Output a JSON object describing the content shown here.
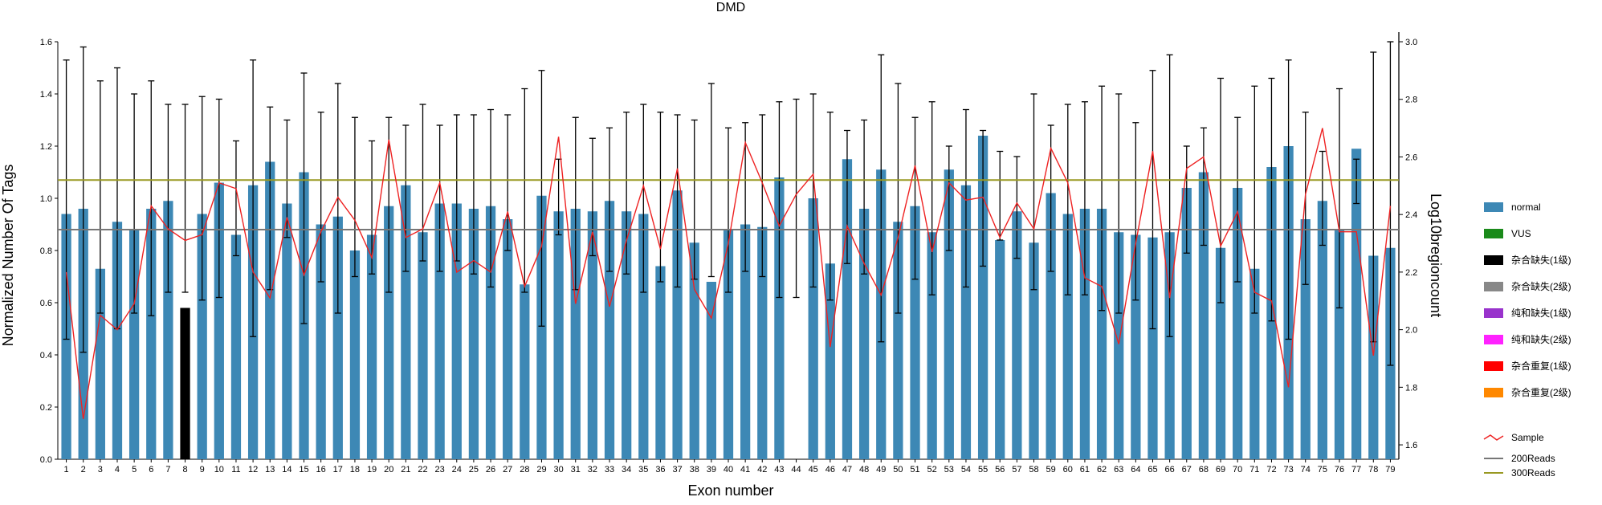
{
  "chart_data": {
    "type": "bar",
    "title": "DMD",
    "xlabel": "Exon number",
    "ylabel": "Normalized Number Of Tags",
    "y2label": "Log10bregioncount",
    "ylim": [
      0,
      1.6
    ],
    "y2lim": [
      1.55,
      3.0
    ],
    "yticks": [
      "0.0",
      "0.2",
      "0.4",
      "0.6",
      "0.8",
      "1.0",
      "1.2",
      "1.4",
      "1.6"
    ],
    "y2ticks": [
      "1.6",
      "1.8",
      "2.0",
      "2.2",
      "2.4",
      "2.6",
      "2.8",
      "3.0"
    ],
    "categories": [
      "1",
      "2",
      "3",
      "4",
      "5",
      "6",
      "7",
      "8",
      "9",
      "10",
      "11",
      "12",
      "13",
      "14",
      "15",
      "16",
      "17",
      "18",
      "19",
      "20",
      "21",
      "22",
      "23",
      "24",
      "25",
      "26",
      "27",
      "28",
      "29",
      "30",
      "31",
      "32",
      "33",
      "34",
      "35",
      "36",
      "37",
      "38",
      "39",
      "40",
      "41",
      "42",
      "43",
      "44",
      "45",
      "46",
      "47",
      "48",
      "49",
      "50",
      "51",
      "52",
      "53",
      "54",
      "55",
      "56",
      "57",
      "58",
      "59",
      "60",
      "61",
      "62",
      "63",
      "64",
      "65",
      "66",
      "67",
      "68",
      "69",
      "70",
      "71",
      "72",
      "73",
      "74",
      "75",
      "76",
      "77",
      "78",
      "79"
    ],
    "values": [
      0.94,
      0.96,
      0.73,
      0.91,
      0.88,
      0.96,
      0.99,
      0.58,
      0.94,
      1.06,
      0.86,
      1.05,
      1.14,
      0.98,
      1.1,
      0.9,
      0.93,
      0.8,
      0.86,
      0.97,
      1.05,
      0.87,
      0.98,
      0.98,
      0.96,
      0.97,
      0.92,
      0.67,
      1.01,
      0.95,
      0.96,
      0.95,
      0.99,
      0.95,
      0.94,
      0.74,
      1.03,
      0.83,
      0.68,
      0.88,
      0.9,
      0.89,
      1.08,
      0,
      1.0,
      0.75,
      1.15,
      0.96,
      1.11,
      0.91,
      0.97,
      0.87,
      1.11,
      1.05,
      1.24,
      0.84,
      0.95,
      0.83,
      1.02,
      0.94,
      0.96,
      0.96,
      0.87,
      0.86,
      0.85,
      0.87,
      1.04,
      1.1,
      0.81,
      1.04,
      0.73,
      1.12,
      1.2,
      0.92,
      0.99,
      0.88,
      1.19,
      0.78,
      0.81
    ],
    "error_low": [
      0.46,
      0.41,
      0.56,
      0.5,
      0.56,
      0.55,
      0.64,
      0.64,
      0.61,
      0.62,
      0.78,
      0.47,
      0.65,
      0.85,
      0.52,
      0.68,
      0.56,
      0.7,
      0.71,
      0.64,
      0.72,
      0.76,
      0.72,
      0.76,
      0.71,
      0.66,
      0.8,
      0.64,
      0.51,
      0.86,
      0.65,
      0.78,
      0.72,
      0.71,
      0.64,
      0.68,
      0.66,
      0.69,
      0.7,
      0.64,
      0.72,
      0.7,
      0.62,
      0.62,
      0.66,
      0.61,
      0.75,
      0.71,
      0.45,
      0.56,
      0.69,
      0.63,
      0.8,
      0.66,
      0.74,
      0.84,
      0.77,
      0.65,
      0.72,
      0.63,
      0.63,
      0.57,
      0.56,
      0.61,
      0.5,
      0.47,
      0.79,
      0.82,
      0.6,
      0.68,
      0.56,
      0.53,
      0.46,
      0.67,
      0.82,
      0.58,
      0.98,
      0.45,
      0.36
    ],
    "error_high": [
      1.53,
      1.58,
      1.45,
      1.5,
      1.4,
      1.45,
      1.36,
      1.36,
      1.39,
      1.38,
      1.22,
      1.53,
      1.35,
      1.3,
      1.48,
      1.33,
      1.44,
      1.31,
      1.22,
      1.31,
      1.28,
      1.36,
      1.28,
      1.32,
      1.32,
      1.34,
      1.32,
      1.42,
      1.49,
      1.15,
      1.31,
      1.23,
      1.27,
      1.33,
      1.36,
      1.33,
      1.32,
      1.3,
      1.44,
      1.27,
      1.29,
      1.32,
      1.37,
      1.38,
      1.4,
      1.33,
      1.26,
      1.3,
      1.55,
      1.44,
      1.31,
      1.37,
      1.2,
      1.34,
      1.26,
      1.18,
      1.16,
      1.4,
      1.28,
      1.36,
      1.37,
      1.43,
      1.4,
      1.29,
      1.49,
      1.55,
      1.2,
      1.27,
      1.46,
      1.31,
      1.43,
      1.46,
      1.53,
      1.33,
      1.18,
      1.42,
      1.15,
      1.56,
      1.6
    ],
    "sample_line": [
      2.2,
      1.69,
      2.05,
      2.0,
      2.09,
      2.43,
      2.35,
      2.31,
      2.33,
      2.51,
      2.49,
      2.2,
      2.11,
      2.39,
      2.19,
      2.34,
      2.46,
      2.38,
      2.25,
      2.66,
      2.32,
      2.35,
      2.51,
      2.2,
      2.24,
      2.2,
      2.41,
      2.15,
      2.29,
      2.67,
      2.09,
      2.34,
      2.08,
      2.31,
      2.5,
      2.28,
      2.56,
      2.14,
      2.04,
      2.3,
      2.65,
      2.51,
      2.36,
      2.47,
      2.54,
      1.94,
      2.36,
      2.23,
      2.12,
      2.32,
      2.57,
      2.27,
      2.51,
      2.45,
      2.46,
      2.32,
      2.44,
      2.35,
      2.63,
      2.51,
      2.18,
      2.15,
      1.95,
      2.3,
      2.62,
      2.11,
      2.56,
      2.6,
      2.29,
      2.41,
      2.13,
      2.1,
      1.8,
      2.47,
      2.7,
      2.34,
      2.34,
      1.91,
      2.43
    ],
    "ref_lines": [
      {
        "name": "200Reads",
        "value": 0.88,
        "color": "#777777"
      },
      {
        "name": "300Reads",
        "value": 1.07,
        "color": "#999922"
      }
    ],
    "bar_color": "#3d88b5",
    "highlight": {
      "category": "8",
      "color": "#000000"
    },
    "sample_color": "#ee2222",
    "legend_position": "right",
    "legend": [
      {
        "label": "normal",
        "color": "#3d88b5",
        "kind": "box"
      },
      {
        "label": "VUS",
        "color": "#1a8a1a",
        "kind": "box"
      },
      {
        "label": "杂合缺失(1级)",
        "color": "#000000",
        "kind": "box"
      },
      {
        "label": "杂合缺失(2级)",
        "color": "#888888",
        "kind": "box"
      },
      {
        "label": "纯和缺失(1级)",
        "color": "#9933cc",
        "kind": "box"
      },
      {
        "label": "纯和缺失(2级)",
        "color": "#ff22ff",
        "kind": "box"
      },
      {
        "label": "杂合重复(1级)",
        "color": "#ff0000",
        "kind": "box"
      },
      {
        "label": "杂合重复(2级)",
        "color": "#ff8800",
        "kind": "box"
      },
      {
        "label": "Sample",
        "color": "#ee2222",
        "kind": "line"
      },
      {
        "label": "200Reads",
        "color": "#777777",
        "kind": "flat"
      },
      {
        "label": "300Reads",
        "color": "#999922",
        "kind": "flat"
      }
    ]
  }
}
